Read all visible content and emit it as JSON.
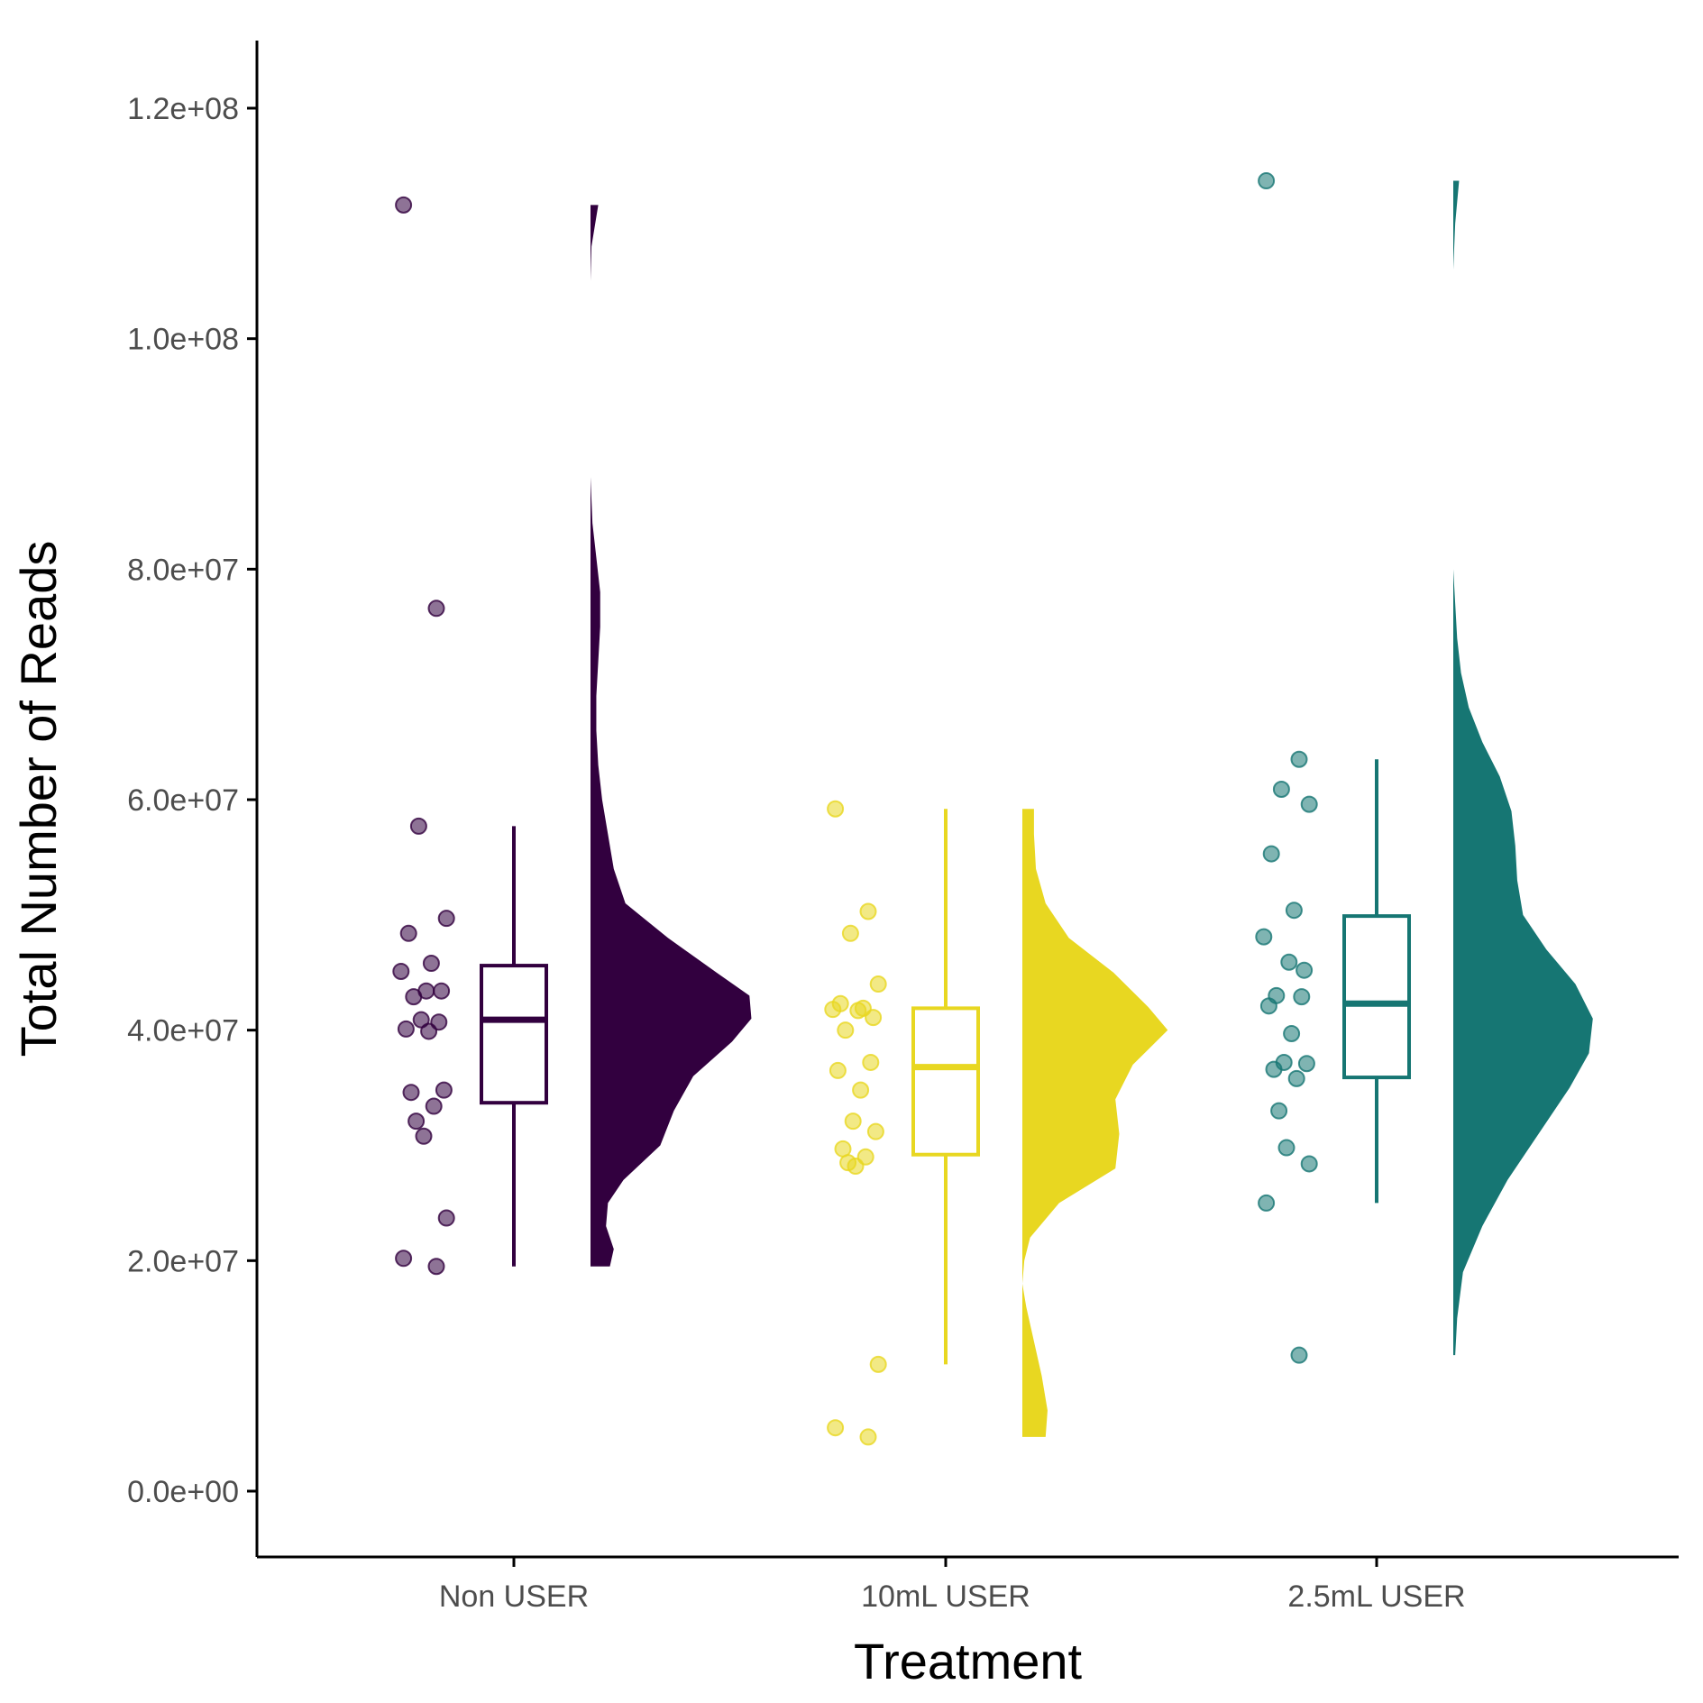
{
  "chart_data": {
    "type": "raincloud",
    "xlabel": "Treatment",
    "ylabel": "Total Number of Reads",
    "ylim": [
      -14500000,
      126000000
    ],
    "y_ticks": [
      0,
      20000000,
      40000000,
      60000000,
      80000000,
      100000000,
      120000000
    ],
    "y_tick_labels": [
      "0.0e+00",
      "2.0e+07",
      "4.0e+07",
      "6.0e+07",
      "8.0e+07",
      "1.0e+08",
      "1.2e+08"
    ],
    "categories": [
      "Non USER",
      "10mL USER",
      "2.5mL USER"
    ],
    "grid": false,
    "legend": "none",
    "groups": [
      {
        "category": "Non USER",
        "color": "#32003f",
        "box": {
          "lower_whisker": 19500000,
          "q1": 33700000,
          "median": 40900000,
          "q3": 45600000,
          "upper_whisker": 57700000
        },
        "points": [
          111600000,
          76600000,
          57700000,
          49700000,
          48400000,
          45800000,
          45100000,
          43400000,
          43400000,
          42900000,
          40700000,
          40100000,
          39900000,
          40900000,
          34800000,
          34600000,
          33400000,
          32100000,
          30800000,
          23700000,
          20200000,
          19500000
        ],
        "density_profile": [
          [
            19500000,
            0.1
          ],
          [
            21000000,
            0.12
          ],
          [
            23000000,
            0.08
          ],
          [
            25000000,
            0.09
          ],
          [
            27000000,
            0.17
          ],
          [
            30000000,
            0.36
          ],
          [
            33000000,
            0.43
          ],
          [
            36000000,
            0.53
          ],
          [
            39000000,
            0.73
          ],
          [
            41000000,
            0.83
          ],
          [
            43000000,
            0.82
          ],
          [
            45000000,
            0.65
          ],
          [
            48000000,
            0.4
          ],
          [
            51000000,
            0.18
          ],
          [
            54000000,
            0.12
          ],
          [
            57000000,
            0.09
          ],
          [
            60000000,
            0.06
          ],
          [
            63000000,
            0.04
          ],
          [
            66000000,
            0.03
          ],
          [
            69000000,
            0.03
          ],
          [
            72000000,
            0.04
          ],
          [
            75000000,
            0.05
          ],
          [
            78000000,
            0.05
          ],
          [
            81000000,
            0.03
          ],
          [
            84000000,
            0.01
          ],
          [
            88000000,
            0.0
          ],
          [
            105000000,
            0.0
          ],
          [
            108000000,
            0.005
          ],
          [
            111600000,
            0.04
          ]
        ]
      },
      {
        "category": "10mL USER",
        "color": "#e8d721",
        "box": {
          "lower_whisker": 11000000,
          "q1": 29200000,
          "median": 36800000,
          "q3": 41900000,
          "upper_whisker": 59200000
        },
        "points": [
          59200000,
          50300000,
          48400000,
          44000000,
          42300000,
          41900000,
          41800000,
          41700000,
          41100000,
          40000000,
          37200000,
          36500000,
          34800000,
          32100000,
          31200000,
          29700000,
          29000000,
          28500000,
          28200000,
          11000000,
          5500000,
          4700000
        ],
        "density_profile": [
          [
            4700000,
            0.12
          ],
          [
            7000000,
            0.13
          ],
          [
            10000000,
            0.1
          ],
          [
            13000000,
            0.06
          ],
          [
            16000000,
            0.02
          ],
          [
            18000000,
            0.0
          ],
          [
            20000000,
            0.01
          ],
          [
            22000000,
            0.04
          ],
          [
            25000000,
            0.19
          ],
          [
            28000000,
            0.48
          ],
          [
            31000000,
            0.5
          ],
          [
            34000000,
            0.48
          ],
          [
            37000000,
            0.57
          ],
          [
            40000000,
            0.75
          ],
          [
            42000000,
            0.65
          ],
          [
            45000000,
            0.47
          ],
          [
            48000000,
            0.24
          ],
          [
            51000000,
            0.12
          ],
          [
            54000000,
            0.07
          ],
          [
            57000000,
            0.06
          ],
          [
            59200000,
            0.06
          ]
        ]
      },
      {
        "category": "2.5mL USER",
        "color": "#167673",
        "box": {
          "lower_whisker": 25000000,
          "q1": 35900000,
          "median": 42300000,
          "q3": 49900000,
          "upper_whisker": 63500000
        },
        "points": [
          113700000,
          63500000,
          60900000,
          59600000,
          55300000,
          50400000,
          48100000,
          45900000,
          45200000,
          43000000,
          42900000,
          42100000,
          39700000,
          37200000,
          37100000,
          36600000,
          35800000,
          33000000,
          29800000,
          28400000,
          25000000,
          11800000
        ],
        "density_profile": [
          [
            11800000,
            0.01
          ],
          [
            15000000,
            0.02
          ],
          [
            19000000,
            0.05
          ],
          [
            23000000,
            0.15
          ],
          [
            27000000,
            0.28
          ],
          [
            31000000,
            0.44
          ],
          [
            35000000,
            0.6
          ],
          [
            38000000,
            0.7
          ],
          [
            41000000,
            0.72
          ],
          [
            44000000,
            0.63
          ],
          [
            47000000,
            0.48
          ],
          [
            50000000,
            0.36
          ],
          [
            53000000,
            0.33
          ],
          [
            56000000,
            0.32
          ],
          [
            59000000,
            0.3
          ],
          [
            62000000,
            0.24
          ],
          [
            65000000,
            0.15
          ],
          [
            68000000,
            0.08
          ],
          [
            71000000,
            0.04
          ],
          [
            74000000,
            0.02
          ],
          [
            77000000,
            0.01
          ],
          [
            80000000,
            0.0
          ],
          [
            98000000,
            0.0
          ],
          [
            102000000,
            0.0
          ],
          [
            106000000,
            0.0
          ],
          [
            110000000,
            0.01
          ],
          [
            113700000,
            0.03
          ]
        ]
      }
    ]
  }
}
